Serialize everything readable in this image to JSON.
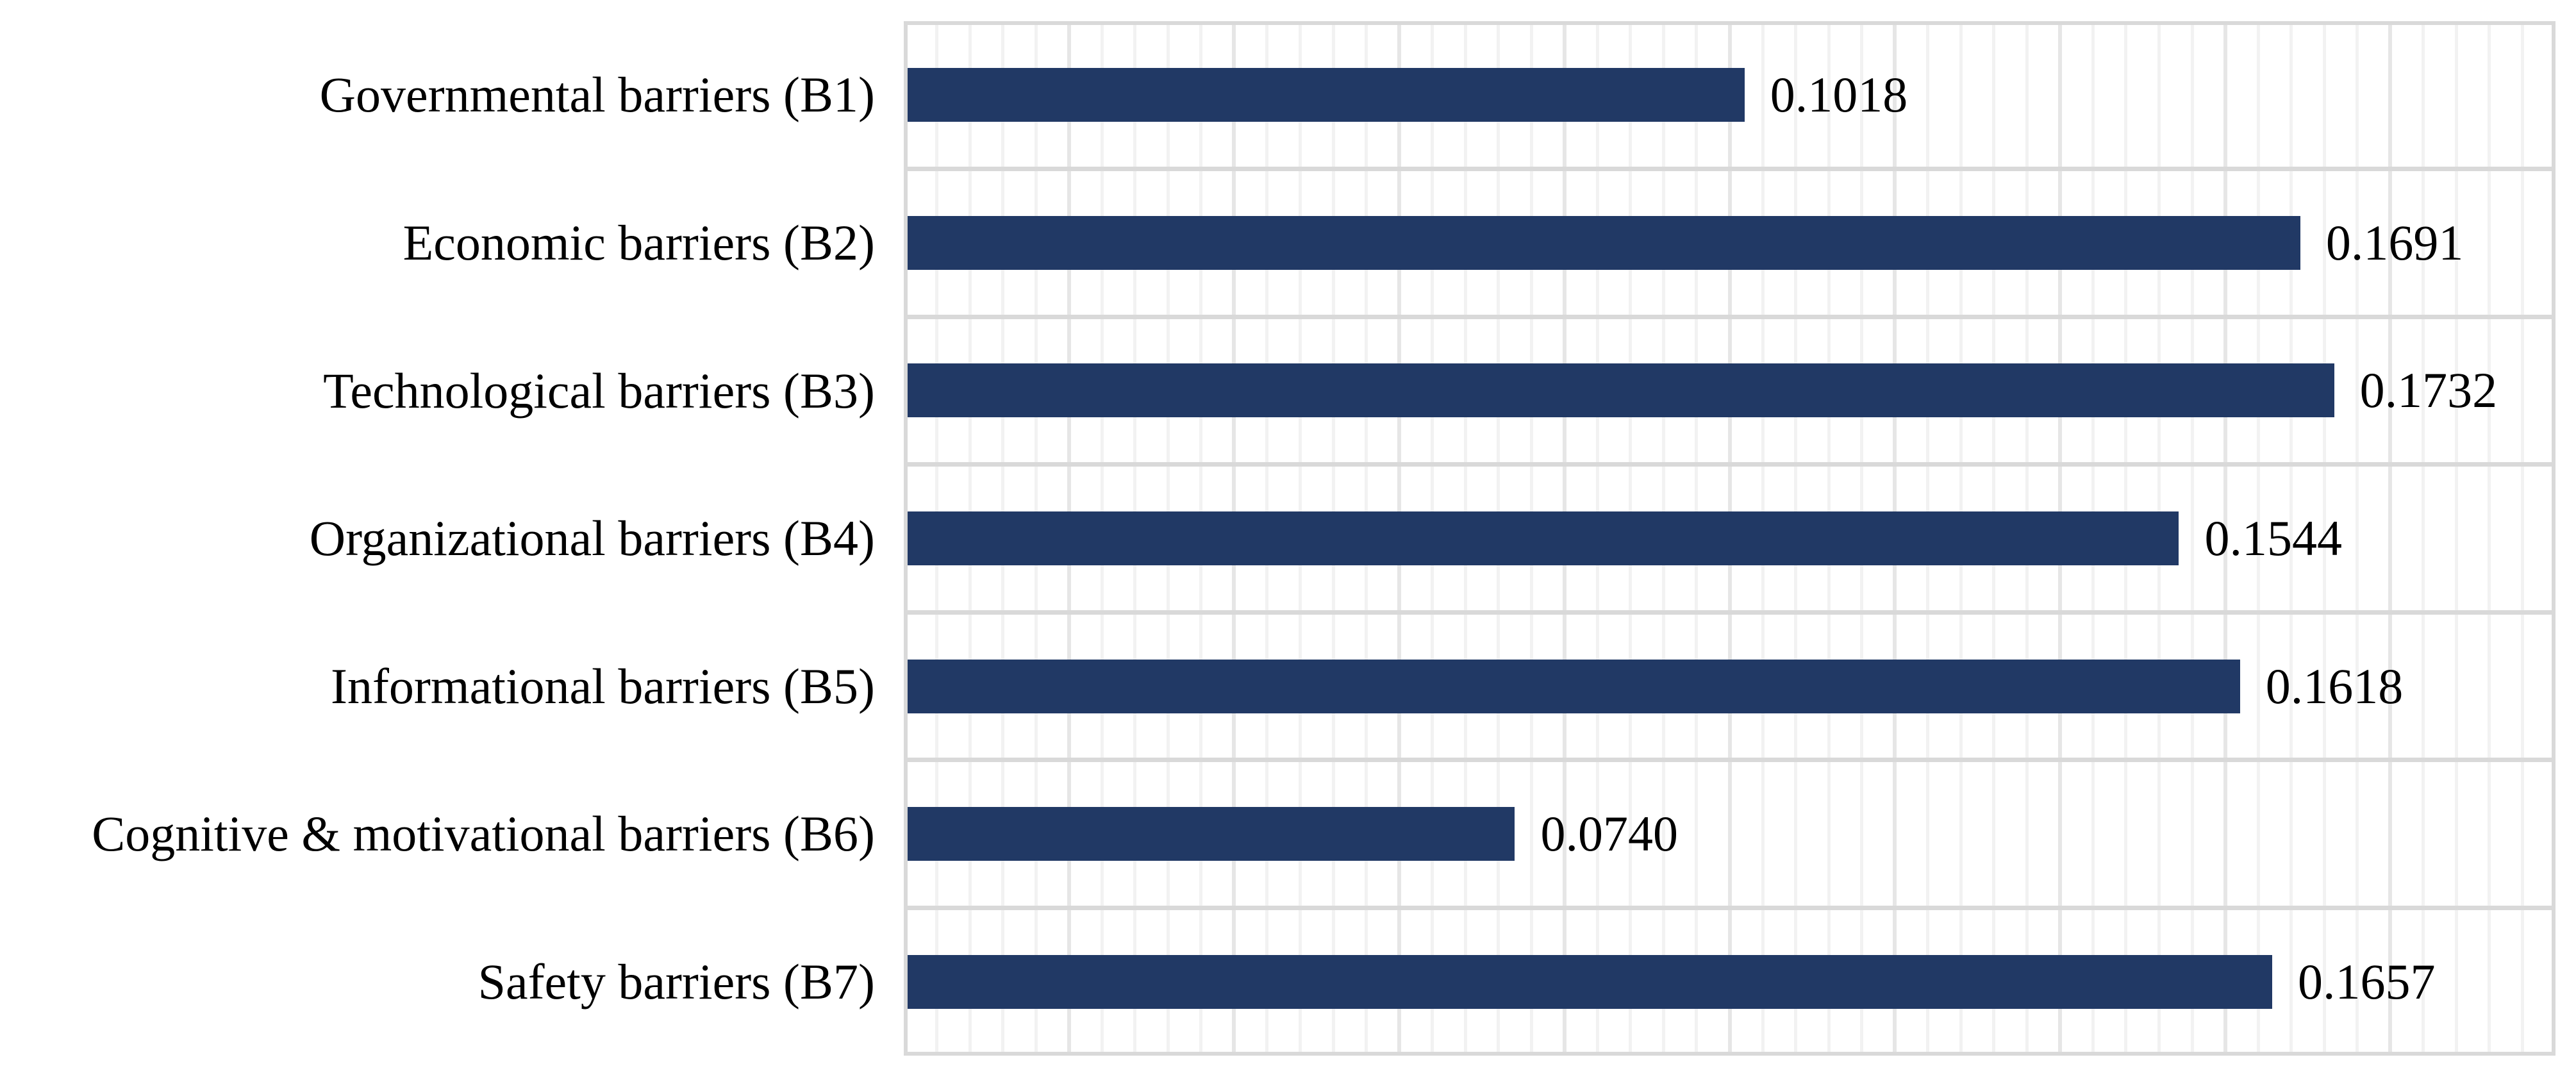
{
  "chart_data": {
    "type": "bar",
    "orientation": "horizontal",
    "title": "",
    "xlabel": "",
    "ylabel": "",
    "categories": [
      "Governmental barriers (B1)",
      "Economic barriers (B2)",
      "Technological barriers (B3)",
      "Organizational barriers (B4)",
      "Informational barriers (B5)",
      "Cognitive & motivational barriers (B6)",
      "Safety barriers (B7)"
    ],
    "values": [
      0.1018,
      0.1691,
      0.1732,
      0.1544,
      0.1618,
      0.074,
      0.1657
    ],
    "value_labels": [
      "0.1018",
      "0.1691",
      "0.1732",
      "0.1544",
      "0.1618",
      "0.0740",
      "0.1657"
    ],
    "xlim": [
      0,
      0.2
    ],
    "x_major_unit": 0.02,
    "x_minor_unit": 0.004,
    "grid": {
      "vertical_minor": true,
      "vertical_major": true,
      "horizontal_category_lines": true,
      "x_tick_labels_visible": false
    },
    "legend_position": "none",
    "colors": {
      "bar": "#213965",
      "minor_grid": "#f2f2f2",
      "major_grid": "#e6e6e6",
      "category_grid": "#d9d9d9",
      "plot_border": "#d9d9d9",
      "text": "#000000",
      "background": "#ffffff"
    }
  }
}
